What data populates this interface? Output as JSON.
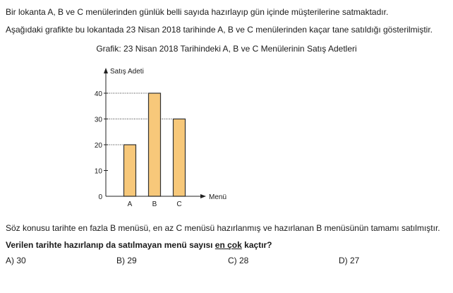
{
  "question": {
    "intro_line1": "Bir lokanta A, B ve C menülerinden günlük belli sayıda hazırlayıp gün içinde müşterilerine satmaktadır.",
    "intro_line2": "Aşağıdaki grafikte bu lokantada 23 Nisan 2018 tarihinde A, B ve C menülerinden kaçar tane satıldığı gösterilmiştir.",
    "statement": "Söz konusu tarihte en fazla B menüsü, en az C menüsü hazırlanmış ve hazırlanan B menüsünün tamamı satılmıştır.",
    "prompt_part1": "Verilen tarihte hazırlanıp da satılmayan menü sayısı ",
    "prompt_underlined": "en çok",
    "prompt_part2": " kaçtır?",
    "options": [
      {
        "label": "A) 30"
      },
      {
        "label": "B) 29"
      },
      {
        "label": "C) 28"
      },
      {
        "label": "D) 27"
      }
    ]
  },
  "chart_data": {
    "type": "bar",
    "title": "Grafik: 23 Nisan 2018 Tarihindeki A, B ve C Menülerinin Satış Adetleri",
    "xlabel": "Menü",
    "ylabel": "Satış Adeti",
    "categories": [
      "A",
      "B",
      "C"
    ],
    "values": [
      20,
      40,
      30
    ],
    "yticks": [
      0,
      10,
      20,
      30,
      40
    ],
    "ylim": [
      0,
      40
    ],
    "grid": "dotted guide lines from axis to bar tops",
    "bar_color": "#f7c87a",
    "bar_stroke": "#333333"
  }
}
